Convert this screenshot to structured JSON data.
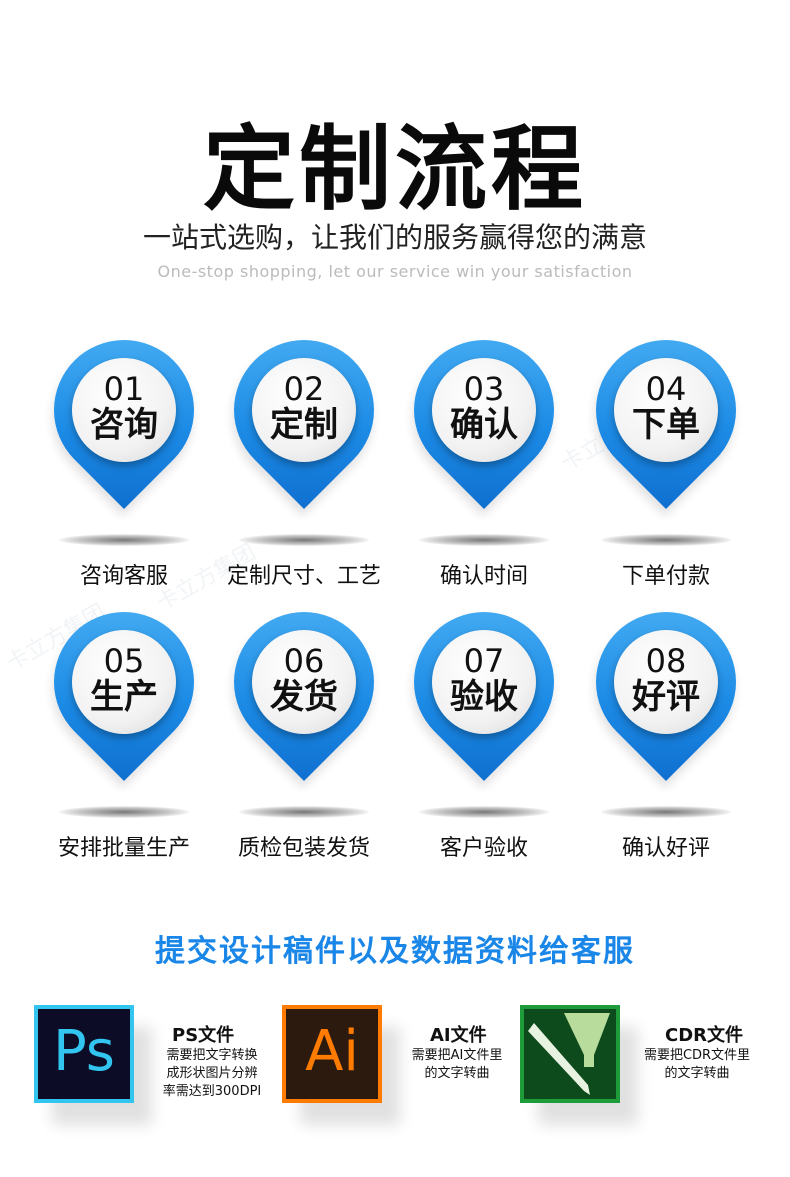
{
  "title": "定制流程",
  "subtitle": "一站式选购，让我们的服务赢得您的满意",
  "subtitle_en": "One-stop shopping, let our service win your satisfaction",
  "watermark": "卡立方集团",
  "steps": [
    {
      "num": "01",
      "name": "咨询",
      "label": "咨询客服"
    },
    {
      "num": "02",
      "name": "定制",
      "label": "定制尺寸、工艺"
    },
    {
      "num": "03",
      "name": "确认",
      "label": "确认时间"
    },
    {
      "num": "04",
      "name": "下单",
      "label": "下单付款"
    },
    {
      "num": "05",
      "name": "生产",
      "label": "安排批量生产"
    },
    {
      "num": "06",
      "name": "发货",
      "label": "质检包装发货"
    },
    {
      "num": "07",
      "name": "验收",
      "label": "客户验收"
    },
    {
      "num": "08",
      "name": "好评",
      "label": "确认好评"
    }
  ],
  "submit_title": "提交设计稿件以及数据资料给客服",
  "software": [
    {
      "icon": "Ps",
      "title": "PS文件",
      "desc": "需要把文字转换\n成形状图片分辨\n率需达到300DPI",
      "color": "#31c5f0"
    },
    {
      "icon": "Ai",
      "title": "AI文件",
      "desc": "需要把AI文件里\n的文字转曲",
      "color": "#ff7c00"
    },
    {
      "icon": "coreldraw",
      "title": "CDR文件",
      "desc": "需要把CDR文件里\n的文字转曲",
      "color": "#1e9c3a"
    }
  ],
  "colors": {
    "accent": "#1a87e8"
  }
}
